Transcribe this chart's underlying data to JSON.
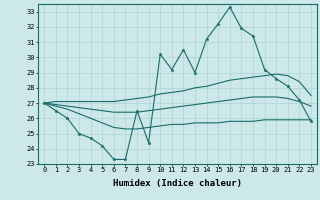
{
  "x": [
    0,
    1,
    2,
    3,
    4,
    5,
    6,
    7,
    8,
    9,
    10,
    11,
    12,
    13,
    14,
    15,
    16,
    17,
    18,
    19,
    20,
    21,
    22,
    23
  ],
  "line_main": [
    27.0,
    26.5,
    26.0,
    25.0,
    24.7,
    24.2,
    23.3,
    23.3,
    26.5,
    24.4,
    30.2,
    29.2,
    30.5,
    29.0,
    31.2,
    32.2,
    33.3,
    31.9,
    31.4,
    29.2,
    28.6,
    28.1,
    27.2,
    25.8
  ],
  "line_upper": [
    27.0,
    27.1,
    27.1,
    27.1,
    27.1,
    27.1,
    27.1,
    27.2,
    27.3,
    27.4,
    27.6,
    27.7,
    27.8,
    28.0,
    28.1,
    28.3,
    28.5,
    28.6,
    28.7,
    28.8,
    28.9,
    28.8,
    28.4,
    27.5
  ],
  "line_mid": [
    27.0,
    26.9,
    26.8,
    26.7,
    26.6,
    26.5,
    26.4,
    26.4,
    26.4,
    26.5,
    26.6,
    26.7,
    26.8,
    26.9,
    27.0,
    27.1,
    27.2,
    27.3,
    27.4,
    27.4,
    27.4,
    27.3,
    27.1,
    26.8
  ],
  "line_lower": [
    27.0,
    26.8,
    26.6,
    26.3,
    26.0,
    25.7,
    25.4,
    25.3,
    25.3,
    25.4,
    25.5,
    25.6,
    25.6,
    25.7,
    25.7,
    25.7,
    25.8,
    25.8,
    25.8,
    25.9,
    25.9,
    25.9,
    25.9,
    25.9
  ],
  "line_color": "#1a6b6b",
  "bg_color": "#cce8e8",
  "grid_color": "#add4d4",
  "xlabel": "Humidex (Indice chaleur)",
  "ylim": [
    23,
    33.5
  ],
  "xlim": [
    -0.5,
    23.5
  ],
  "yticks": [
    23,
    24,
    25,
    26,
    27,
    28,
    29,
    30,
    31,
    32,
    33
  ],
  "xticks": [
    0,
    1,
    2,
    3,
    4,
    5,
    6,
    7,
    8,
    9,
    10,
    11,
    12,
    13,
    14,
    15,
    16,
    17,
    18,
    19,
    20,
    21,
    22,
    23
  ],
  "tick_fontsize": 5.0,
  "xlabel_fontsize": 6.5
}
